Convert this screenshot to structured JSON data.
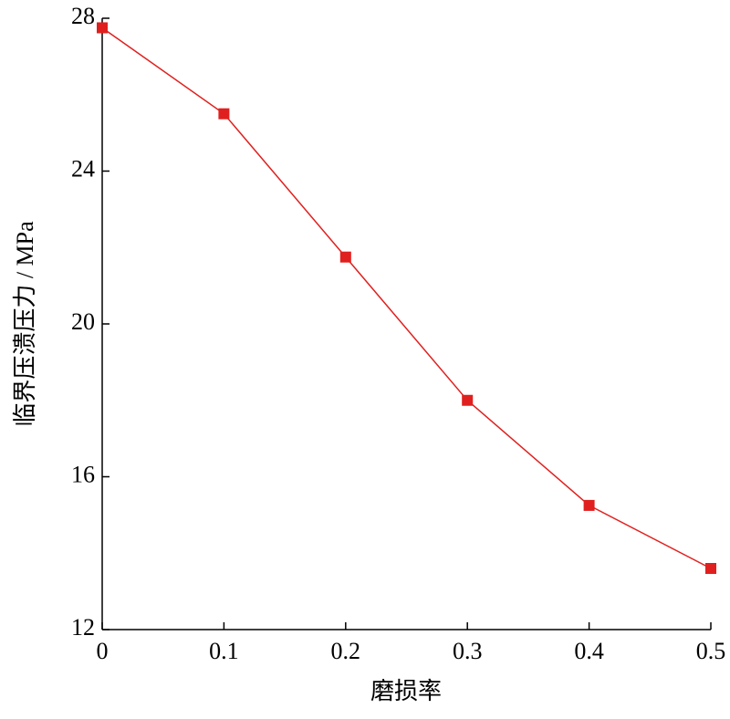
{
  "chart_data": {
    "type": "line",
    "x_label": "磨损率",
    "y_label": "临界压溃压力 / MPa",
    "x": [
      0,
      0.1,
      0.2,
      0.3,
      0.4,
      0.5
    ],
    "series": [
      {
        "color": "#e0201e",
        "values": [
          27.75,
          25.5,
          21.75,
          18.0,
          15.25,
          13.6
        ]
      }
    ],
    "xlim": [
      0,
      0.5
    ],
    "xticks": [
      0,
      0.1,
      0.2,
      0.3,
      0.4,
      0.5
    ],
    "ylim": [
      12,
      28
    ],
    "yticks": [
      12,
      16,
      20,
      24,
      28
    ]
  }
}
